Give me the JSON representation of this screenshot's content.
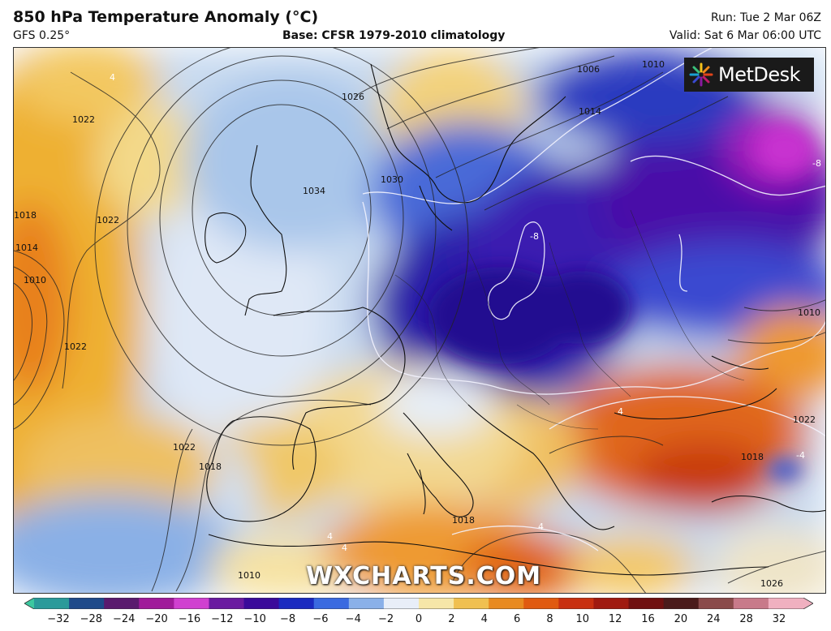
{
  "header": {
    "title": "850 hPa Temperature Anomaly (°C)",
    "model": "GFS 0.25°",
    "base": "Base: CFSR 1979-2010 climatology",
    "run": "Run: Tue 2 Mar 06Z",
    "valid": "Valid: Sat 6 Mar 06:00 UTC"
  },
  "logo": {
    "text": "MetDesk",
    "icon": "metdesk-burst-icon"
  },
  "watermark": "WXCHARTS.COM",
  "map": {
    "isobar_labels": [
      "1006",
      "1010",
      "1014",
      "1022",
      "1026",
      "1030",
      "1034",
      "1022",
      "1018",
      "1014",
      "1010",
      "1022",
      "1022",
      "1018",
      "1018",
      "1010",
      "1022",
      "1026",
      "1010",
      "1018"
    ],
    "anomaly_labels": [
      "-8",
      "-8",
      "4",
      "4",
      "4",
      "-4",
      "4",
      "4"
    ]
  },
  "colorbar": {
    "ticks": [
      "−32",
      "−28",
      "−24",
      "−20",
      "−16",
      "−12",
      "−10",
      "−8",
      "−6",
      "−4",
      "−2",
      "0",
      "2",
      "4",
      "6",
      "8",
      "10",
      "12",
      "16",
      "20",
      "24",
      "28",
      "32"
    ],
    "colors": [
      "#3cc8a0",
      "#2a9a9a",
      "#1e4a8a",
      "#5a1a6e",
      "#a01a9a",
      "#d040d0",
      "#6a1aa0",
      "#3a0a9a",
      "#1a2ac0",
      "#3a6ae0",
      "#8ab0e8",
      "#e8eef8",
      "#f6e6a8",
      "#f0c050",
      "#e88a20",
      "#e05a10",
      "#c83010",
      "#a01a10",
      "#701010",
      "#4a1a1a",
      "#8a4a4a",
      "#c87a8a",
      "#f0b0c0"
    ]
  }
}
